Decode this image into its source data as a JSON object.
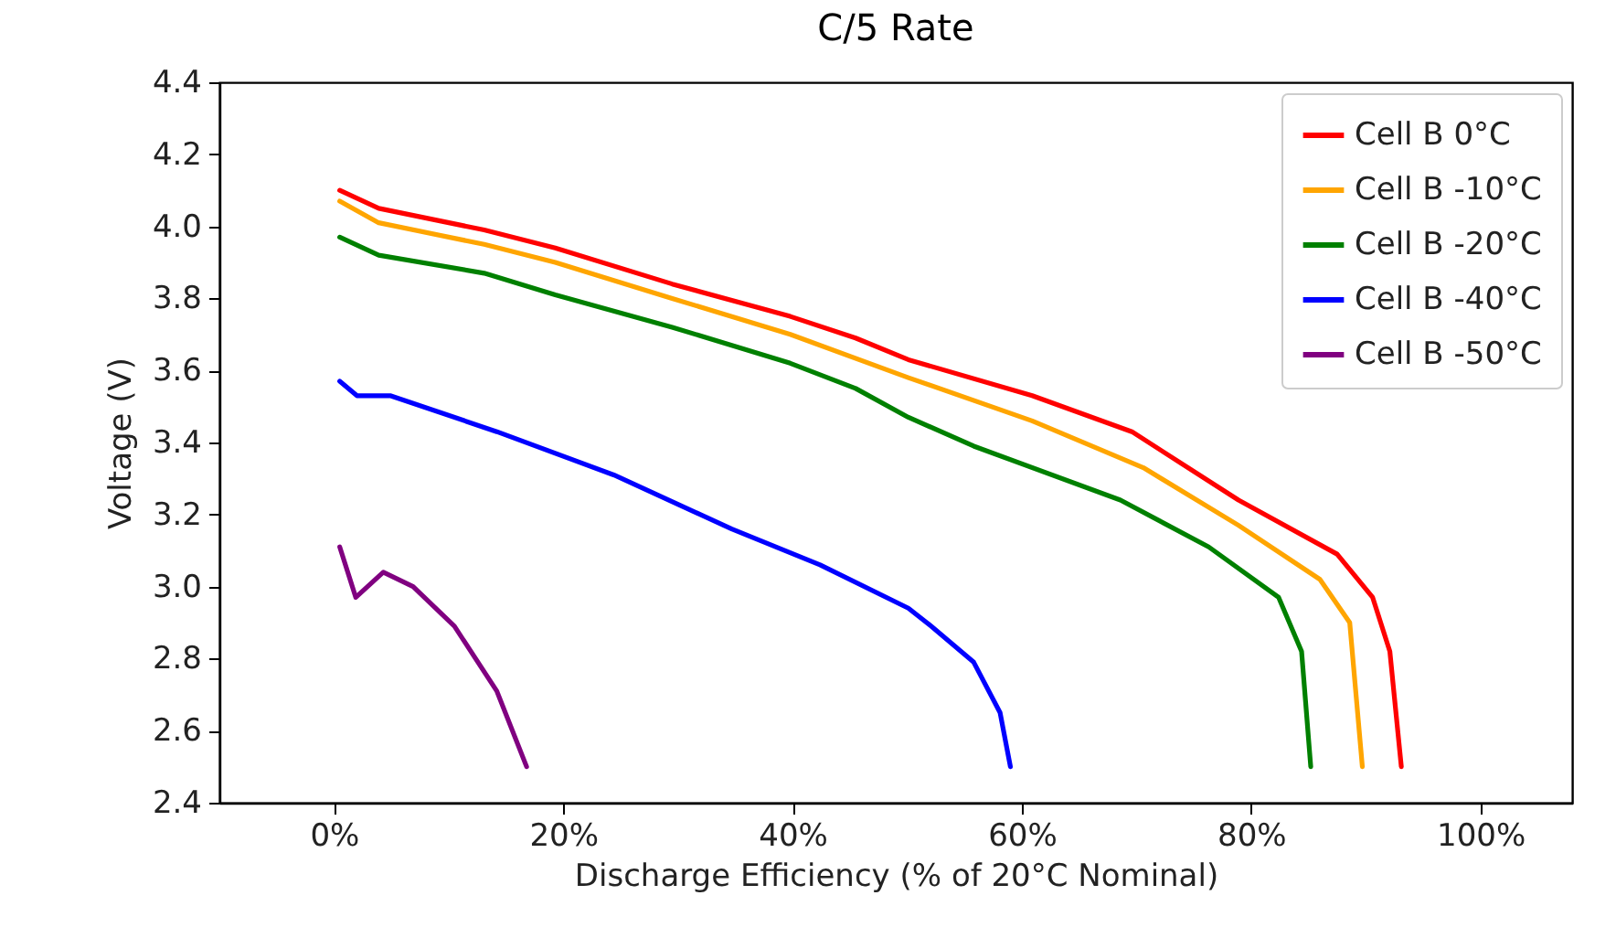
{
  "chart_data": {
    "type": "line",
    "title": "C/5 Rate",
    "xlabel": "Discharge Efficiency (% of 20°C Nominal)",
    "ylabel": "Voltage (V)",
    "xlim": [
      -10,
      108
    ],
    "xticks": [
      {
        "value": 0,
        "label": "0%"
      },
      {
        "value": 20,
        "label": "20%"
      },
      {
        "value": 40,
        "label": "40%"
      },
      {
        "value": 60,
        "label": "60%"
      },
      {
        "value": 80,
        "label": "80%"
      },
      {
        "value": 100,
        "label": "100%"
      }
    ],
    "ylim": [
      2.4,
      4.4
    ],
    "yticks": [
      2.4,
      2.6,
      2.8,
      {
        "value": 3,
        "label": "3.0"
      },
      3.2,
      3.4,
      3.6,
      3.8,
      {
        "value": 4,
        "label": "4.0"
      },
      4.2,
      4.4
    ],
    "grid": false,
    "legend": "top right",
    "series": [
      {
        "name": "Cell B 0°C",
        "color": "#ff0000",
        "x": [
          0.5,
          3.9,
          13.1,
          19.3,
          29.5,
          39.8,
          45.5,
          50.1,
          60.9,
          69.6,
          78.9,
          87.5,
          90.6,
          92.1,
          93.1
        ],
        "values": [
          4.1,
          4.05,
          3.99,
          3.94,
          3.84,
          3.75,
          3.69,
          3.63,
          3.53,
          3.43,
          3.24,
          3.09,
          2.97,
          2.82,
          2.5
        ]
      },
      {
        "name": "Cell B -10°C",
        "color": "#ffa500",
        "x": [
          0.5,
          3.9,
          13.1,
          19.3,
          29.5,
          39.8,
          50.1,
          60.9,
          70.6,
          78.9,
          86.0,
          88.6,
          89.7
        ],
        "values": [
          4.07,
          4.01,
          3.95,
          3.9,
          3.8,
          3.7,
          3.58,
          3.46,
          3.33,
          3.17,
          3.02,
          2.9,
          2.5
        ]
      },
      {
        "name": "Cell B -20°C",
        "color": "#008000",
        "x": [
          0.5,
          3.9,
          13.1,
          19.3,
          29.5,
          39.8,
          45.5,
          50.1,
          55.8,
          68.6,
          76.3,
          82.4,
          84.4,
          85.2
        ],
        "values": [
          3.97,
          3.92,
          3.87,
          3.81,
          3.72,
          3.62,
          3.55,
          3.47,
          3.39,
          3.24,
          3.11,
          2.97,
          2.82,
          2.5
        ]
      },
      {
        "name": "Cell B -40°C",
        "color": "#0000ff",
        "x": [
          0.5,
          2.0,
          4.9,
          14.2,
          24.4,
          34.7,
          42.4,
          50.1,
          52.1,
          55.8,
          58.1,
          59.0
        ],
        "values": [
          3.57,
          3.53,
          3.53,
          3.43,
          3.31,
          3.16,
          3.06,
          2.94,
          2.89,
          2.79,
          2.65,
          2.5
        ]
      },
      {
        "name": "Cell B -50°C",
        "color": "#800080",
        "x": [
          0.5,
          1.9,
          4.3,
          6.9,
          10.5,
          14.2,
          16.8
        ],
        "values": [
          3.11,
          2.97,
          3.04,
          3.0,
          2.89,
          2.71,
          2.5
        ]
      }
    ]
  }
}
